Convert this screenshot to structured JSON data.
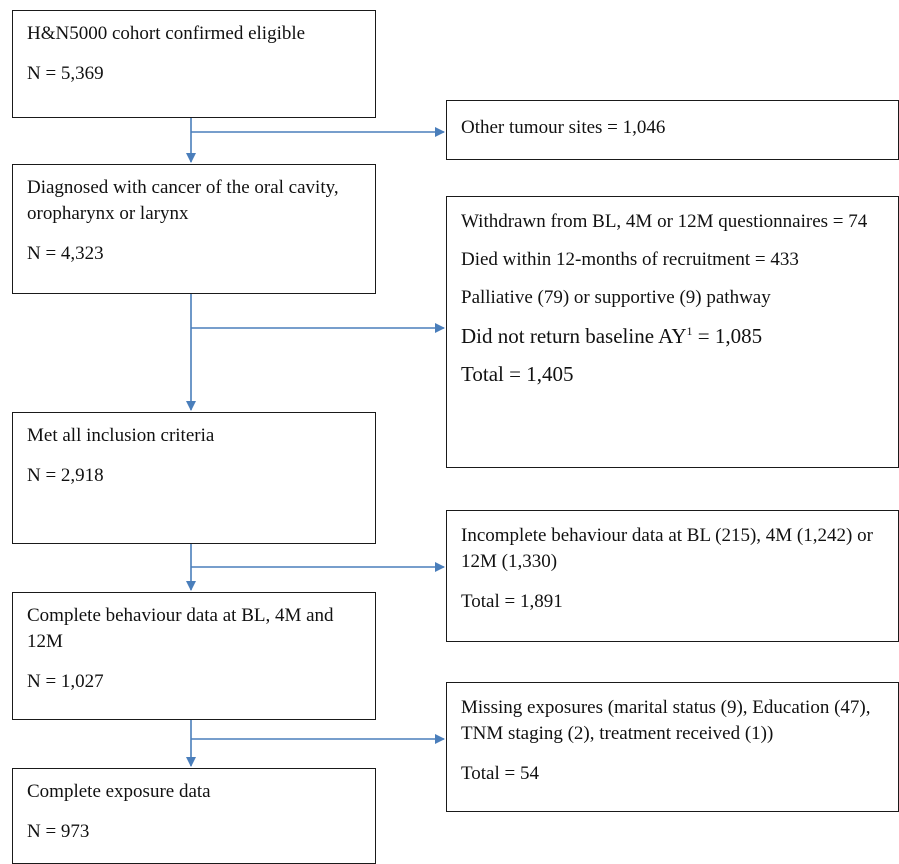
{
  "main_steps": [
    {
      "title": "H&N5000 cohort confirmed eligible",
      "n": "N = 5,369"
    },
    {
      "title": "Diagnosed with cancer of the oral cavity, oropharynx or larynx",
      "n": "N = 4,323"
    },
    {
      "title": "Met all inclusion criteria",
      "n": "N = 2,918"
    },
    {
      "title": "Complete behaviour data at BL, 4M and 12M",
      "n": "N = 1,027"
    },
    {
      "title": "Complete exposure data",
      "n": "N = 973"
    }
  ],
  "exclusions": [
    {
      "lines": [
        "Other tumour sites = 1,046"
      ]
    },
    {
      "withdrawn": "Withdrawn from BL, 4M or 12M questionnaires = 74",
      "died": "Died within 12-months of recruitment = 433",
      "pathway": "Palliative (79) or supportive (9) pathway",
      "no_return_prefix": "Did not return baseline AY",
      "no_return_sup": "1",
      "no_return_suffix": " = 1,085",
      "total": "Total = 1,405"
    },
    {
      "detail": "Incomplete behaviour data at BL (215), 4M (1,242) or 12M (1,330)",
      "total": "Total = 1,891"
    },
    {
      "detail": "Missing exposures (marital status (9), Education (47), TNM staging (2), treatment received (1))",
      "total": "Total = 54"
    }
  ],
  "colors": {
    "arrow": "#4a7ebb",
    "border": "#1a1a1a"
  }
}
